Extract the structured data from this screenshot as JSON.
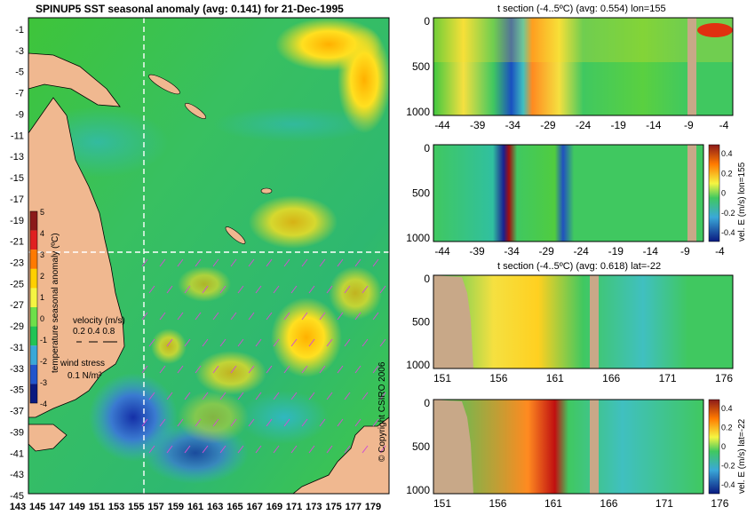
{
  "map": {
    "title": "SPINUP5 SST seasonal anomaly (avg: 0.141) for 21-Dec-1995",
    "colorbar": {
      "label": "temperature seasonal anomaly (ºC)",
      "ticks": [
        "5",
        "4",
        "3",
        "2",
        "1",
        "0",
        "-1",
        "-2",
        "-3",
        "-4"
      ],
      "colors": [
        "#8b1a1a",
        "#e02020",
        "#ff7a00",
        "#ffd000",
        "#f5f542",
        "#6ee04a",
        "#22c455",
        "#3aa8d8",
        "#2255cc",
        "#0a1a80"
      ]
    },
    "velocity_legend": {
      "title": "velocity (m/s)",
      "values": "0.2 0.4 0.8"
    },
    "wind_legend": {
      "title": "wind stress",
      "value": "0.1 N/m²"
    },
    "y_ticks": [
      "-1",
      "-3",
      "-5",
      "-7",
      "-9",
      "-11",
      "-13",
      "-15",
      "-17",
      "-19",
      "-21",
      "-23",
      "-25",
      "-27",
      "-29",
      "-31",
      "-33",
      "-35",
      "-37",
      "-39",
      "-41",
      "-43",
      "-45"
    ],
    "x_ticks": [
      "143",
      "145",
      "147",
      "149",
      "151",
      "153",
      "155",
      "157",
      "159",
      "161",
      "163",
      "165",
      "167",
      "169",
      "171",
      "173",
      "175",
      "177",
      "179"
    ]
  },
  "copyright": "© Copyright CSIRO 2006",
  "sections": [
    {
      "title": "t section (-4..5ºC) (avg: 0.554) lon=155",
      "x_ticks": [
        "-44",
        "-39",
        "-34",
        "-29",
        "-24",
        "-19",
        "-14",
        "-9",
        "-4"
      ],
      "y_ticks": [
        "0",
        "500",
        "1000"
      ],
      "colorbar": null
    },
    {
      "title": "",
      "x_ticks": [
        "-44",
        "-39",
        "-34",
        "-29",
        "-24",
        "-19",
        "-14",
        "-9",
        "-4"
      ],
      "y_ticks": [
        "0",
        "500",
        "1000"
      ],
      "colorbar": {
        "label": "vel. E (m/s) lon=155",
        "ticks": [
          "0.4",
          "0.2",
          "0",
          "-0.2",
          "-0.4"
        ]
      }
    },
    {
      "title": "t section (-4..5ºC) (avg: 0.618) lat=-22",
      "x_ticks": [
        "151",
        "156",
        "161",
        "166",
        "171",
        "176"
      ],
      "y_ticks": [
        "0",
        "500",
        "1000"
      ],
      "colorbar": null
    },
    {
      "title": "",
      "x_ticks": [
        "151",
        "156",
        "161",
        "166",
        "171",
        "176"
      ],
      "y_ticks": [
        "0",
        "500",
        "1000"
      ],
      "colorbar": {
        "label": "vel. E (m/s) lat=-22",
        "ticks": [
          "0.4",
          "0.2",
          "0",
          "-0.2",
          "-0.4"
        ]
      }
    }
  ],
  "chart_data": [
    {
      "type": "heatmap",
      "title": "SPINUP5 SST seasonal anomaly (avg: 0.141) for 21-Dec-1995",
      "x_axis": "longitude",
      "xlim": [
        143,
        180
      ],
      "y_axis": "latitude",
      "ylim": [
        -45,
        0
      ],
      "color_range": [
        -4,
        5
      ],
      "crosshair": {
        "lon": 155,
        "lat": -22
      }
    },
    {
      "type": "heatmap",
      "title": "t section (-4..5ºC) (avg: 0.554) lon=155",
      "xlim": [
        -45,
        -1
      ],
      "ylim": [
        1050,
        0
      ],
      "color_range": [
        -4,
        5
      ]
    },
    {
      "type": "heatmap",
      "ylabel": "vel. E (m/s) lon=155",
      "xlim": [
        -45,
        -1
      ],
      "ylim": [
        1050,
        0
      ],
      "color_range": [
        -0.4,
        0.4
      ]
    },
    {
      "type": "heatmap",
      "title": "t section (-4..5ºC) (avg: 0.618) lat=-22",
      "xlim": [
        150,
        180
      ],
      "ylim": [
        1050,
        0
      ],
      "color_range": [
        -4,
        5
      ]
    },
    {
      "type": "heatmap",
      "ylabel": "vel. E (m/s) lat=-22",
      "xlim": [
        150,
        180
      ],
      "ylim": [
        1050,
        0
      ],
      "color_range": [
        -0.4,
        0.4
      ]
    }
  ]
}
